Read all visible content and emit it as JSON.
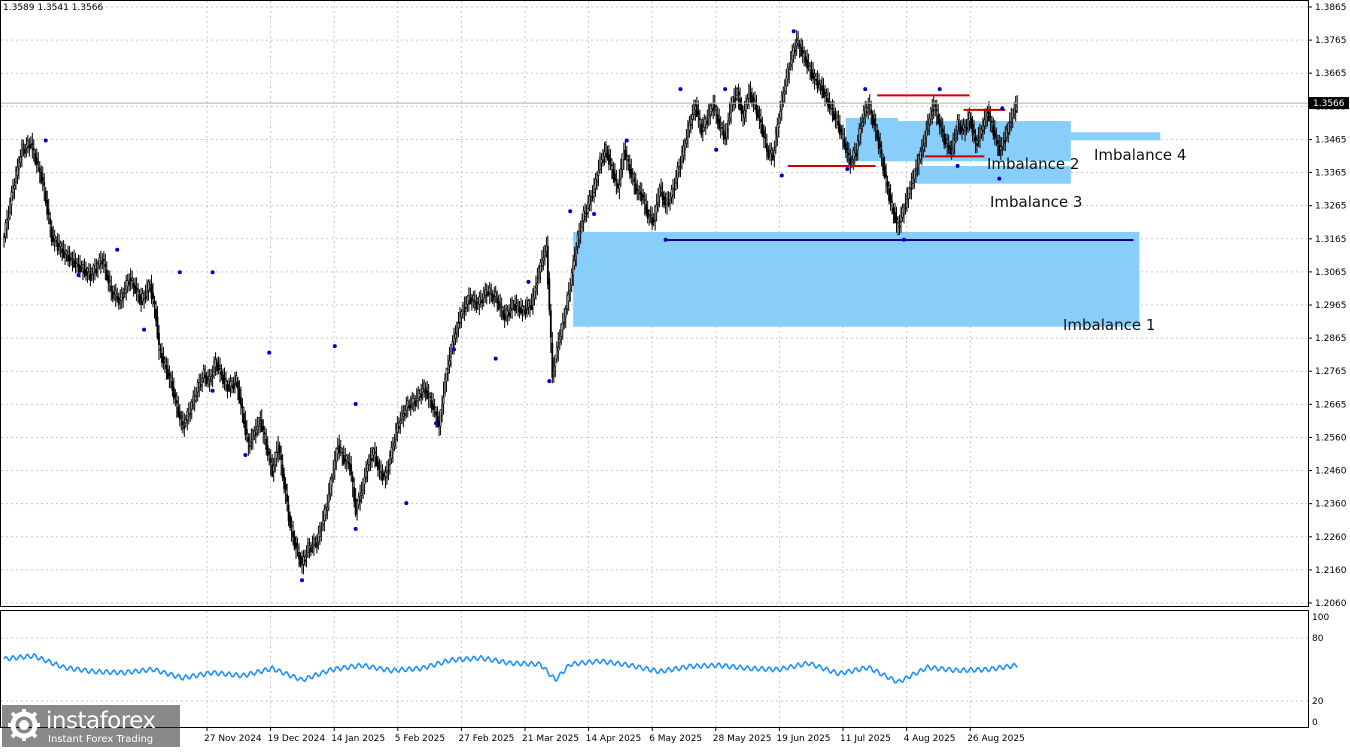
{
  "header": {
    "ohlc": "1.3589 1.3541 1.3566"
  },
  "watermark": {
    "name": "instaforex",
    "tagline": "Instant Forex Trading"
  },
  "colors": {
    "zone": "#87cefa",
    "level_red": "#cc0000",
    "level_blue": "#00008b",
    "rsi": "#1e90ff",
    "fractal": "#0000cc",
    "candle": "#000000",
    "grid": "#c8c8c8"
  },
  "chart_data": [
    {
      "type": "candlestick",
      "symbol_price_label": "1.3566",
      "ylim": [
        1.201,
        1.3865
      ],
      "y_ticks": [
        "1.3865",
        "1.3765",
        "1.3665",
        "1.3565",
        "1.3465",
        "1.3365",
        "1.3265",
        "1.3165",
        "1.3065",
        "1.2965",
        "1.2865",
        "1.2765",
        "1.2665",
        "1.2560",
        "1.2460",
        "1.2360",
        "1.2260",
        "1.2160",
        "1.2060"
      ],
      "x_ticks": [
        "27 Nov 2024",
        "19 Dec 2024",
        "14 Jan 2025",
        "5 Feb 2025",
        "27 Feb 2025",
        "21 Mar 2025",
        "14 Apr 2025",
        "6 May 2025",
        "28 May 2025",
        "19 Jun 2025",
        "11 Jul 2025",
        "4 Aug 2025",
        "26 Aug 2025"
      ],
      "close_path": [
        [
          0,
          1.315
        ],
        [
          6,
          1.33
        ],
        [
          12,
          1.342
        ],
        [
          18,
          1.344
        ],
        [
          22,
          1.338
        ],
        [
          26,
          1.332
        ],
        [
          32,
          1.315
        ],
        [
          40,
          1.31
        ],
        [
          50,
          1.306
        ],
        [
          58,
          1.303
        ],
        [
          66,
          1.308
        ],
        [
          72,
          1.298
        ],
        [
          78,
          1.295
        ],
        [
          84,
          1.302
        ],
        [
          88,
          1.299
        ],
        [
          92,
          1.295
        ],
        [
          98,
          1.3
        ],
        [
          102,
          1.29
        ],
        [
          104,
          1.28
        ],
        [
          108,
          1.275
        ],
        [
          112,
          1.27
        ],
        [
          116,
          1.262
        ],
        [
          120,
          1.256
        ],
        [
          124,
          1.26
        ],
        [
          130,
          1.268
        ],
        [
          134,
          1.272
        ],
        [
          138,
          1.27
        ],
        [
          142,
          1.276
        ],
        [
          146,
          1.272
        ],
        [
          150,
          1.268
        ],
        [
          156,
          1.27
        ],
        [
          160,
          1.26
        ],
        [
          164,
          1.25
        ],
        [
          168,
          1.254
        ],
        [
          172,
          1.258
        ],
        [
          176,
          1.25
        ],
        [
          180,
          1.242
        ],
        [
          184,
          1.25
        ],
        [
          188,
          1.238
        ],
        [
          192,
          1.225
        ],
        [
          196,
          1.218
        ],
        [
          200,
          1.213
        ],
        [
          204,
          1.218
        ],
        [
          210,
          1.22
        ],
        [
          216,
          1.23
        ],
        [
          220,
          1.24
        ],
        [
          224,
          1.25
        ],
        [
          228,
          1.246
        ],
        [
          232,
          1.244
        ],
        [
          236,
          1.23
        ],
        [
          240,
          1.236
        ],
        [
          244,
          1.244
        ],
        [
          248,
          1.248
        ],
        [
          252,
          1.242
        ],
        [
          256,
          1.24
        ],
        [
          260,
          1.248
        ],
        [
          264,
          1.256
        ],
        [
          270,
          1.262
        ],
        [
          276,
          1.264
        ],
        [
          282,
          1.268
        ],
        [
          288,
          1.262
        ],
        [
          292,
          1.256
        ],
        [
          296,
          1.27
        ],
        [
          300,
          1.28
        ],
        [
          306,
          1.29
        ],
        [
          312,
          1.296
        ],
        [
          318,
          1.294
        ],
        [
          324,
          1.298
        ],
        [
          330,
          1.296
        ],
        [
          336,
          1.29
        ],
        [
          342,
          1.294
        ],
        [
          348,
          1.292
        ],
        [
          354,
          1.294
        ],
        [
          356,
          1.298
        ],
        [
          360,
          1.306
        ],
        [
          364,
          1.312
        ],
        [
          368,
          1.272
        ],
        [
          372,
          1.282
        ],
        [
          376,
          1.29
        ],
        [
          380,
          1.3
        ],
        [
          384,
          1.312
        ],
        [
          388,
          1.32
        ],
        [
          392,
          1.325
        ],
        [
          396,
          1.33
        ],
        [
          400,
          1.338
        ],
        [
          404,
          1.342
        ],
        [
          408,
          1.336
        ],
        [
          412,
          1.33
        ],
        [
          416,
          1.342
        ],
        [
          420,
          1.336
        ],
        [
          424,
          1.33
        ],
        [
          428,
          1.328
        ],
        [
          432,
          1.322
        ],
        [
          436,
          1.32
        ],
        [
          440,
          1.33
        ],
        [
          444,
          1.325
        ],
        [
          448,
          1.328
        ],
        [
          452,
          1.335
        ],
        [
          456,
          1.342
        ],
        [
          460,
          1.35
        ],
        [
          464,
          1.356
        ],
        [
          468,
          1.348
        ],
        [
          472,
          1.352
        ],
        [
          476,
          1.356
        ],
        [
          480,
          1.35
        ],
        [
          484,
          1.346
        ],
        [
          488,
          1.356
        ],
        [
          492,
          1.36
        ],
        [
          496,
          1.352
        ],
        [
          500,
          1.36
        ],
        [
          504,
          1.356
        ],
        [
          508,
          1.35
        ],
        [
          512,
          1.342
        ],
        [
          516,
          1.34
        ],
        [
          520,
          1.352
        ],
        [
          524,
          1.362
        ],
        [
          528,
          1.37
        ],
        [
          532,
          1.376
        ],
        [
          536,
          1.372
        ],
        [
          540,
          1.368
        ],
        [
          544,
          1.364
        ],
        [
          548,
          1.362
        ],
        [
          552,
          1.358
        ],
        [
          556,
          1.354
        ],
        [
          560,
          1.35
        ],
        [
          564,
          1.344
        ],
        [
          568,
          1.338
        ],
        [
          572,
          1.342
        ],
        [
          576,
          1.352
        ],
        [
          580,
          1.356
        ],
        [
          584,
          1.35
        ],
        [
          588,
          1.342
        ],
        [
          592,
          1.332
        ],
        [
          596,
          1.324
        ],
        [
          600,
          1.318
        ],
        [
          604,
          1.324
        ],
        [
          608,
          1.33
        ],
        [
          612,
          1.336
        ],
        [
          616,
          1.342
        ],
        [
          620,
          1.35
        ],
        [
          624,
          1.356
        ],
        [
          628,
          1.35
        ],
        [
          632,
          1.344
        ],
        [
          636,
          1.342
        ],
        [
          640,
          1.35
        ],
        [
          644,
          1.348
        ],
        [
          648,
          1.352
        ],
        [
          652,
          1.344
        ],
        [
          656,
          1.348
        ],
        [
          660,
          1.354
        ],
        [
          664,
          1.348
        ],
        [
          668,
          1.342
        ],
        [
          672,
          1.346
        ],
        [
          676,
          1.352
        ],
        [
          680,
          1.3566
        ]
      ],
      "fractal_highs": [
        [
          28,
          1.344
        ],
        [
          76,
          1.31
        ],
        [
          118,
          1.303
        ],
        [
          140,
          1.303
        ],
        [
          178,
          1.278
        ],
        [
          222,
          1.28
        ],
        [
          236,
          1.262
        ],
        [
          290,
          1.256
        ],
        [
          302,
          1.279
        ],
        [
          352,
          1.3
        ],
        [
          380,
          1.322
        ],
        [
          418,
          1.344
        ],
        [
          454,
          1.36
        ],
        [
          484,
          1.36
        ],
        [
          530,
          1.378
        ],
        [
          578,
          1.36
        ],
        [
          628,
          1.36
        ],
        [
          670,
          1.354
        ]
      ],
      "fractal_lows": [
        [
          50,
          1.304
        ],
        [
          94,
          1.287
        ],
        [
          140,
          1.268
        ],
        [
          162,
          1.248
        ],
        [
          200,
          1.209
        ],
        [
          236,
          1.225
        ],
        [
          270,
          1.233
        ],
        [
          330,
          1.278
        ],
        [
          366,
          1.271
        ],
        [
          396,
          1.323
        ],
        [
          444,
          1.315
        ],
        [
          478,
          1.343
        ],
        [
          522,
          1.335
        ],
        [
          566,
          1.337
        ],
        [
          604,
          1.315
        ],
        [
          640,
          1.338
        ],
        [
          668,
          1.334
        ]
      ],
      "zones": [
        {
          "label": "Imbalance 1",
          "x1": 382,
          "x2": 762,
          "top": 1.3165,
          "bottom": 1.287
        },
        {
          "label": "Imbalance 2",
          "x1": 565,
          "x2": 716,
          "top": 1.351,
          "bottom": 1.3385
        },
        {
          "label": "Imbalance 3",
          "x1": 612,
          "x2": 716,
          "top": 1.337,
          "bottom": 1.3315
        },
        {
          "label": "Imbalance 4",
          "x1": 716,
          "x2": 776,
          "top": 1.3475,
          "bottom": 1.345
        },
        {
          "label": "",
          "x1": 565,
          "x2": 600,
          "top": 1.352,
          "bottom": 1.348
        }
      ],
      "levels": [
        {
          "color": "red",
          "x1": 586,
          "x2": 648,
          "y": 1.359
        },
        {
          "color": "red",
          "x1": 526,
          "x2": 585,
          "y": 1.337
        },
        {
          "color": "red",
          "x1": 618,
          "x2": 658,
          "y": 1.34
        },
        {
          "color": "red",
          "x1": 644,
          "x2": 672,
          "y": 1.3545
        },
        {
          "color": "blue",
          "x1": 444,
          "x2": 758,
          "y": 1.314
        }
      ]
    },
    {
      "type": "line",
      "name": "RSI",
      "y_ticks": [
        "100",
        "80",
        "20",
        "0"
      ],
      "ylim": [
        0,
        100
      ],
      "x": [
        0,
        20,
        40,
        60,
        80,
        100,
        120,
        140,
        160,
        180,
        200,
        220,
        240,
        260,
        280,
        300,
        320,
        340,
        360,
        370,
        380,
        400,
        420,
        440,
        460,
        480,
        500,
        520,
        540,
        560,
        580,
        600,
        620,
        640,
        660,
        680
      ],
      "values": [
        60,
        63,
        52,
        48,
        47,
        50,
        42,
        47,
        44,
        51,
        40,
        50,
        54,
        49,
        51,
        59,
        61,
        56,
        55,
        40,
        55,
        58,
        54,
        48,
        53,
        54,
        51,
        50,
        56,
        46,
        52,
        38,
        52,
        49,
        50,
        54
      ]
    }
  ]
}
